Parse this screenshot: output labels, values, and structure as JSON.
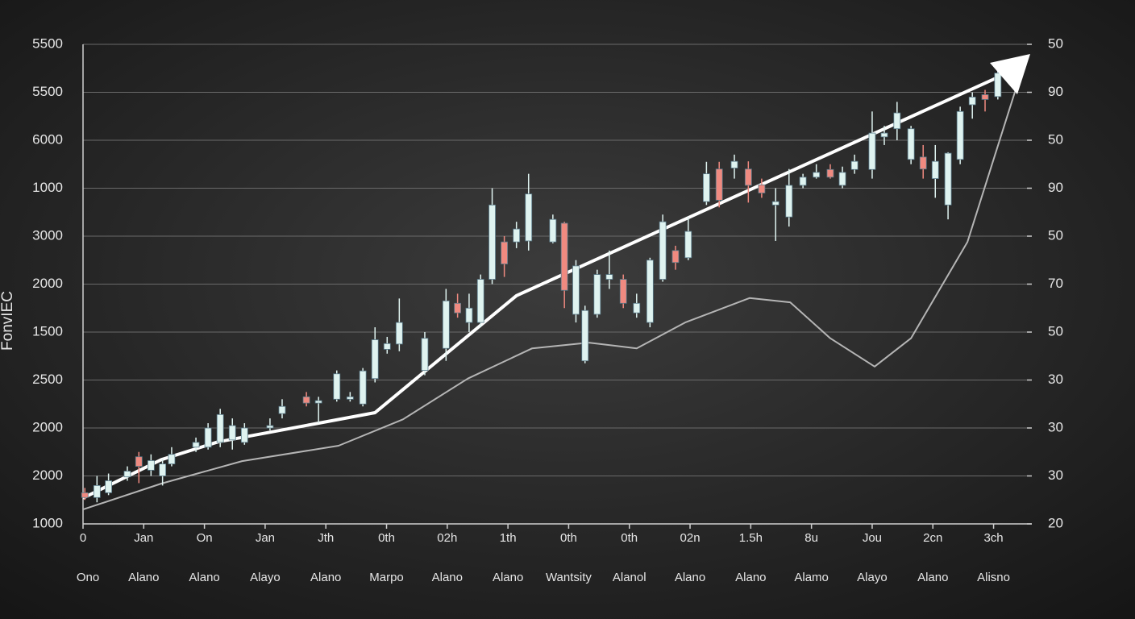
{
  "chart_data": {
    "type": "candlestick",
    "y_label": "FonvIEC",
    "xlim": [
      0,
      15.63
    ],
    "ylim": [
      0,
      10
    ],
    "y2lim": [
      0,
      10
    ],
    "grid": true,
    "up_color": "#dff3f0",
    "down_color": "#f08a80",
    "xticks": [
      0,
      {
        "value": 1,
        "label": "Jan"
      },
      {
        "value": 2,
        "label": "On"
      },
      {
        "value": 3,
        "label": "Jan"
      },
      {
        "value": 4,
        "label": "Jth"
      },
      {
        "value": 5,
        "label": "0th"
      },
      {
        "value": 6,
        "label": "02h"
      },
      {
        "value": 7,
        "label": "1th"
      },
      {
        "value": 8,
        "label": "0th"
      },
      {
        "value": 9,
        "label": "0th"
      },
      {
        "value": 10,
        "label": "02n"
      },
      {
        "value": 11,
        "label": "1.5h"
      },
      {
        "value": 12,
        "label": "8u"
      },
      {
        "value": 13,
        "label": "Jou"
      },
      {
        "value": 14,
        "label": "2cn"
      },
      {
        "value": 15,
        "label": "3ch"
      }
    ],
    "x_sublabels": [
      "Ono",
      "Alano",
      "Alano",
      "Alayo",
      "Alano",
      "Marpo",
      "Alano",
      "Alano",
      "Wantsity",
      "Alanol",
      "Alano",
      "Alano",
      "Alamo",
      "Alayo",
      "Alano",
      "Alisno"
    ],
    "yticks": [
      {
        "value": 0,
        "label": "1000"
      },
      {
        "value": 1,
        "label": "2000"
      },
      {
        "value": 2,
        "label": "2000"
      },
      {
        "value": 3,
        "label": "2500"
      },
      {
        "value": 4,
        "label": "1500"
      },
      {
        "value": 5,
        "label": "2000"
      },
      {
        "value": 6,
        "label": "3000"
      },
      {
        "value": 7,
        "label": "1000"
      },
      {
        "value": 8,
        "label": "6000"
      },
      {
        "value": 9,
        "label": "5500"
      },
      {
        "value": 10,
        "label": "5500"
      }
    ],
    "y2ticks": [
      {
        "value": 0,
        "label": "20"
      },
      {
        "value": 1,
        "label": "30"
      },
      {
        "value": 2,
        "label": "30"
      },
      {
        "value": 3,
        "label": "30"
      },
      {
        "value": 4,
        "label": "50"
      },
      {
        "value": 5,
        "label": "70"
      },
      {
        "value": 6,
        "label": "50"
      },
      {
        "value": 7,
        "label": "90"
      },
      {
        "value": 8,
        "label": "50"
      },
      {
        "value": 9,
        "label": "90"
      },
      {
        "value": 10,
        "label": "50"
      }
    ],
    "candles": {
      "x": [
        0.03,
        0.23,
        0.42,
        0.73,
        0.92,
        1.12,
        1.31,
        1.46,
        1.86,
        2.06,
        2.26,
        2.46,
        2.66,
        3.08,
        3.28,
        3.68,
        3.88,
        4.18,
        4.4,
        4.61,
        4.81,
        5.01,
        5.21,
        5.63,
        5.98,
        6.17,
        6.36,
        6.55,
        6.74,
        6.94,
        7.14,
        7.34,
        7.74,
        7.93,
        8.12,
        8.27,
        8.47,
        8.67,
        8.9,
        9.12,
        9.34,
        9.55,
        9.76,
        9.97,
        10.27,
        10.48,
        10.73,
        10.96,
        11.18,
        11.41,
        11.63,
        11.86,
        12.08,
        12.31,
        12.51,
        12.71,
        13.0,
        13.2,
        13.41,
        13.64,
        13.84,
        14.04,
        14.25,
        14.45,
        14.65,
        14.86,
        15.07
      ],
      "open": [
        0.65,
        0.55,
        0.65,
        0.98,
        1.4,
        1.12,
        1.0,
        1.25,
        1.6,
        1.6,
        1.7,
        1.75,
        1.7,
        2.0,
        2.3,
        2.65,
        2.52,
        2.6,
        2.6,
        2.5,
        3.03,
        3.64,
        3.75,
        3.2,
        3.66,
        4.6,
        4.2,
        4.2,
        5.1,
        5.88,
        5.88,
        5.9,
        5.88,
        6.27,
        4.37,
        3.4,
        4.37,
        5.1,
        5.1,
        4.4,
        4.2,
        5.1,
        5.7,
        5.55,
        6.72,
        7.4,
        7.42,
        7.4,
        7.07,
        6.65,
        6.4,
        7.06,
        7.23,
        7.39,
        7.06,
        7.39,
        7.39,
        8.07,
        8.24,
        7.6,
        7.65,
        7.2,
        6.65,
        7.6,
        8.74,
        8.95,
        8.91
      ],
      "high": [
        0.75,
        1.0,
        1.05,
        1.2,
        1.5,
        1.45,
        1.35,
        1.6,
        1.8,
        2.1,
        2.4,
        2.2,
        2.1,
        2.2,
        2.6,
        2.75,
        2.65,
        3.2,
        2.75,
        3.25,
        4.1,
        3.9,
        4.7,
        4.0,
        4.9,
        4.8,
        4.8,
        5.2,
        7.0,
        6.0,
        6.3,
        7.3,
        6.45,
        6.3,
        5.5,
        4.55,
        5.3,
        5.7,
        5.2,
        4.8,
        5.55,
        6.45,
        5.8,
        6.4,
        7.55,
        7.55,
        7.7,
        7.56,
        7.2,
        7.0,
        7.4,
        7.3,
        7.5,
        7.5,
        7.45,
        7.7,
        8.6,
        8.3,
        8.8,
        8.3,
        7.9,
        7.9,
        7.75,
        8.7,
        9.0,
        9.05,
        9.5
      ],
      "low": [
        0.5,
        0.45,
        0.6,
        0.9,
        0.85,
        1.0,
        0.8,
        1.2,
        1.5,
        1.55,
        1.6,
        1.55,
        1.65,
        1.95,
        2.2,
        2.45,
        2.1,
        2.55,
        2.55,
        2.45,
        2.95,
        3.55,
        3.6,
        3.1,
        3.4,
        4.3,
        4.0,
        4.1,
        5.0,
        5.15,
        5.75,
        5.7,
        5.85,
        4.5,
        4.2,
        3.35,
        4.3,
        4.9,
        4.5,
        4.3,
        4.1,
        5.05,
        5.3,
        5.5,
        6.65,
        6.6,
        7.2,
        6.7,
        6.8,
        5.9,
        6.2,
        7.0,
        7.2,
        7.2,
        7.0,
        7.3,
        7.2,
        7.9,
        8.0,
        7.5,
        7.2,
        6.8,
        6.35,
        7.5,
        8.45,
        8.6,
        8.85
      ],
      "close": [
        0.55,
        0.8,
        0.9,
        1.1,
        1.2,
        1.32,
        1.25,
        1.45,
        1.7,
        2.0,
        2.28,
        2.05,
        2.0,
        2.05,
        2.45,
        2.52,
        2.57,
        3.13,
        2.65,
        3.19,
        3.84,
        3.76,
        4.2,
        3.87,
        4.65,
        4.4,
        4.5,
        5.1,
        6.65,
        5.42,
        6.15,
        6.88,
        6.35,
        4.87,
        5.38,
        4.45,
        5.2,
        5.2,
        4.6,
        4.6,
        5.5,
        6.3,
        5.45,
        6.1,
        7.3,
        6.75,
        7.56,
        7.06,
        6.9,
        6.72,
        7.06,
        7.23,
        7.33,
        7.23,
        7.33,
        7.56,
        8.15,
        8.15,
        8.57,
        8.24,
        7.4,
        7.56,
        7.73,
        8.6,
        8.9,
        8.85,
        9.4
      ]
    },
    "trend_line": {
      "color": "#ffffff",
      "x": [
        0,
        1.29,
        2.22,
        4.81,
        7.14,
        15.1
      ],
      "values": [
        0.54,
        1.34,
        1.71,
        2.32,
        4.76,
        9.33
      ]
    },
    "curve_line": {
      "color": "#b5b5b5",
      "x": [
        0,
        1.29,
        2.62,
        4.21,
        5.27,
        6.34,
        7.4,
        8.33,
        9.12,
        9.92,
        10.98,
        11.65,
        12.31,
        13.04,
        13.64,
        14.57,
        15.39
      ],
      "values": [
        0.3,
        0.84,
        1.31,
        1.63,
        2.18,
        3.03,
        3.66,
        3.78,
        3.66,
        4.2,
        4.71,
        4.62,
        3.87,
        3.28,
        3.87,
        5.88,
        9.16
      ]
    }
  }
}
